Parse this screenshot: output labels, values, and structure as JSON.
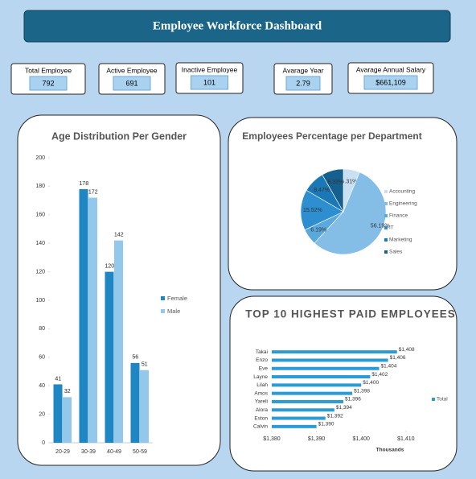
{
  "header": {
    "title": "Employee Workforce Dashboard"
  },
  "kpis": [
    {
      "label": "Total Employee",
      "value": 792
    },
    {
      "label": "Active Employee",
      "value": 691
    },
    {
      "label": "Inactive Employee",
      "value": 101
    },
    {
      "label": "Avarage Year",
      "value": 2.79
    },
    {
      "label": "Avarage Annual Salary",
      "value": 661109,
      "value_label": "$661,109"
    }
  ],
  "chart_data": [
    {
      "type": "bar",
      "title": "Age Distribution Per Gender",
      "categories": [
        "20-29",
        "30-39",
        "40-49",
        "50-59"
      ],
      "series": [
        {
          "name": "Female",
          "color": "#1f86c4",
          "values": [
            41,
            178,
            120,
            56
          ]
        },
        {
          "name": "Male",
          "color": "#93c8ea",
          "values": [
            32,
            172,
            142,
            51
          ]
        }
      ],
      "ylim": [
        0,
        200
      ],
      "yticks": [
        0,
        20,
        40,
        60,
        80,
        100,
        120,
        140,
        160,
        180,
        200
      ],
      "grid": false,
      "legend": "right"
    },
    {
      "type": "pie",
      "title": "Employees Percentage per Department",
      "categories": [
        "Accounting",
        "Engineering",
        "Finance",
        "IT",
        "Marketing",
        "Sales"
      ],
      "values": [
        6.31,
        56.19,
        6.19,
        15.52,
        8.47,
        8.33
      ],
      "value_labels": [
        "6.31%",
        "56.19%",
        "6.19%",
        "15.52%",
        "8.47%",
        "8.33%"
      ],
      "colors": [
        "#c9e0f3",
        "#84bde6",
        "#5aa8dc",
        "#2d8fd0",
        "#1b78b7",
        "#16608f"
      ],
      "legend": "right"
    },
    {
      "type": "barh",
      "title": "TOP 10 HIGHEST PAID EMPLOYEES",
      "categories": [
        "Takai",
        "Enzo",
        "Eve",
        "Layne",
        "Lilah",
        "Amos",
        "Yareli",
        "Alora",
        "Eston",
        "Calvin"
      ],
      "series": [
        {
          "name": "Total",
          "color": "#2b9bd6",
          "values": [
            1408,
            1406,
            1404,
            1402,
            1400,
            1398,
            1396,
            1394,
            1392,
            1390
          ],
          "value_labels": [
            "$1,408",
            "$1,406",
            "$1,404",
            "$1,402",
            "$1,400",
            "$1,398",
            "$1,396",
            "$1,394",
            "$1,392",
            "$1,390"
          ]
        }
      ],
      "xlim": [
        1380,
        1412
      ],
      "xticks": [
        {
          "value": 1380,
          "label": "$1,380"
        },
        {
          "value": 1390,
          "label": "$1,390"
        },
        {
          "value": 1400,
          "label": "$1,400"
        },
        {
          "value": 1410,
          "label": "$1,410"
        }
      ],
      "xlabel": "Thousands",
      "grid": false,
      "legend": "right"
    }
  ]
}
